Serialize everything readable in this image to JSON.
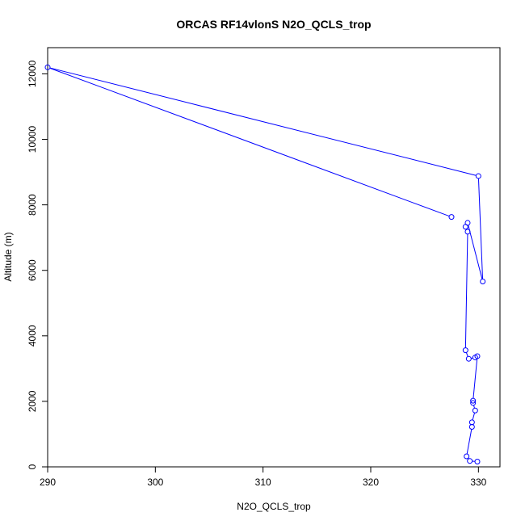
{
  "chart_data": {
    "type": "line",
    "title": "ORCAS RF14vlonS N2O_QCLS_trop",
    "xlabel": "N2O_QCLS_trop",
    "ylabel": "Altitude (m)",
    "xlim": [
      290,
      332
    ],
    "ylim": [
      0,
      12800
    ],
    "x_ticks": [
      290,
      300,
      310,
      320,
      330
    ],
    "y_ticks": [
      0,
      2000,
      4000,
      6000,
      8000,
      10000,
      12000
    ],
    "series_color": "#0000ff",
    "markers": "open-circle",
    "grid": false,
    "legend": "none",
    "points": [
      {
        "x": 329.9,
        "y": 160
      },
      {
        "x": 329.2,
        "y": 180
      },
      {
        "x": 328.9,
        "y": 320
      },
      {
        "x": 329.4,
        "y": 1220
      },
      {
        "x": 329.4,
        "y": 1360
      },
      {
        "x": 329.7,
        "y": 1720
      },
      {
        "x": 329.5,
        "y": 1950
      },
      {
        "x": 329.5,
        "y": 2020
      },
      {
        "x": 329.9,
        "y": 3380
      },
      {
        "x": 329.7,
        "y": 3340
      },
      {
        "x": 329.1,
        "y": 3300
      },
      {
        "x": 328.8,
        "y": 3560
      },
      {
        "x": 329.0,
        "y": 7180
      },
      {
        "x": 328.8,
        "y": 7330
      },
      {
        "x": 329.0,
        "y": 7450
      },
      {
        "x": 330.4,
        "y": 5660
      },
      {
        "x": 330.0,
        "y": 8880
      },
      {
        "x": 290.0,
        "y": 12200
      },
      {
        "x": 327.5,
        "y": 7630
      }
    ]
  }
}
